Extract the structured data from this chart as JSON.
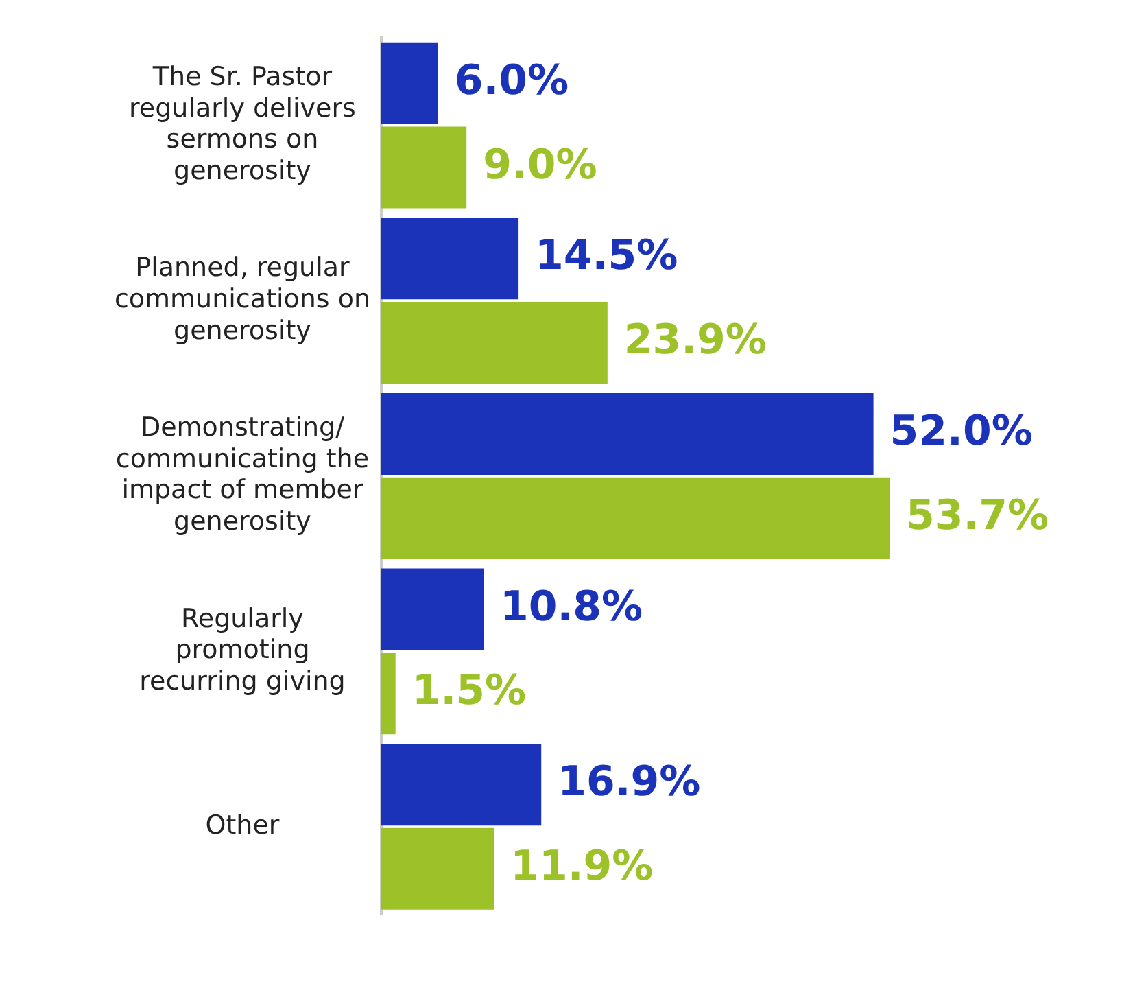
{
  "chart_data": {
    "type": "bar",
    "orientation": "horizontal",
    "categories": [
      "The Sr. Pastor regularly delivers sermons on generosity",
      "Planned, regular communications on generosity",
      "Demonstrating/ communicating the impact of member generosity",
      "Regularly promoting recurring giving",
      "Other"
    ],
    "series": [
      {
        "color": "#1a33b8",
        "values": [
          6.0,
          14.5,
          52.0,
          10.8,
          16.9
        ],
        "value_labels": [
          "6.0%",
          "14.5%",
          "52.0%",
          "10.8%",
          "16.9%"
        ]
      },
      {
        "color": "#9dc129",
        "values": [
          9.0,
          23.9,
          53.7,
          1.5,
          11.9
        ],
        "value_labels": [
          "9.0%",
          "23.9%",
          "53.7%",
          "1.5%",
          "11.9%"
        ]
      }
    ],
    "legend": false,
    "grid": false
  }
}
